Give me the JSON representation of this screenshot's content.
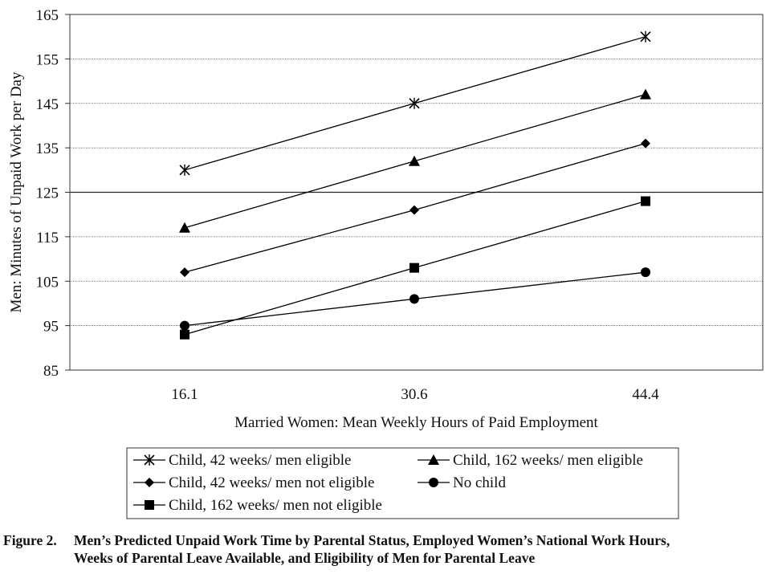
{
  "chart_data": {
    "type": "line",
    "x": [
      "16.1",
      "30.6",
      "44.4"
    ],
    "xlabel": "Married Women: Mean Weekly Hours of Paid Employment",
    "ylabel": "Men: Minutes of Unpaid Work per Day",
    "ylim": [
      85,
      165
    ],
    "yticks": [
      85,
      95,
      105,
      115,
      125,
      135,
      145,
      155,
      165
    ],
    "grid": true,
    "legend_position": "bottom",
    "series": [
      {
        "name": "Child, 42 weeks/ men eligible",
        "marker": "star",
        "values": [
          130,
          145,
          160
        ]
      },
      {
        "name": "Child, 162 weeks/ men eligible",
        "marker": "triangle",
        "values": [
          117,
          132,
          147
        ]
      },
      {
        "name": "Child, 42 weeks/ men not eligible",
        "marker": "diamond",
        "values": [
          107,
          121,
          136
        ]
      },
      {
        "name": "No child",
        "marker": "circle",
        "values": [
          95,
          101,
          107
        ]
      },
      {
        "name": "Child, 162 weeks/ men not eligible",
        "marker": "square",
        "values": [
          93,
          108,
          123
        ]
      }
    ]
  },
  "caption": {
    "label": "Figure 2.",
    "line1": "Men’s Predicted Unpaid Work Time by Parental Status, Employed Women’s National Work Hours,",
    "line2": "Weeks of Parental Leave Available, and Eligibility of Men for Parental Leave"
  }
}
